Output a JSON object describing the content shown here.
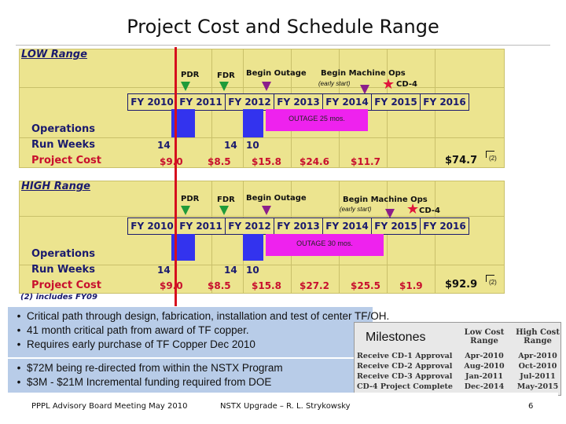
{
  "title": "Project Cost and Schedule Range",
  "fiscal_years": [
    "FY 2010",
    "FY 2011",
    "FY 2012",
    "FY 2013",
    "FY 2014",
    "FY 2015",
    "FY 2016"
  ],
  "row_labels": {
    "operations": "Operations",
    "run_weeks": "Run Weeks",
    "project_cost": "Project Cost"
  },
  "milestones": {
    "pdr": "PDR",
    "fdr": "FDR",
    "begin_outage": "Begin Outage",
    "begin_machine_ops": "Begin Machine Ops",
    "early_start": "(early start)",
    "cd4": "CD-4"
  },
  "low": {
    "label": "LOW Range",
    "outage": "OUTAGE 25 mos.",
    "run_weeks": [
      "14",
      "14",
      "10"
    ],
    "costs": [
      "$9.0",
      "$8.5",
      "$15.8",
      "$24.6",
      "$11.7"
    ],
    "total": "$74.7",
    "note": "(2)"
  },
  "high": {
    "label": "HIGH Range",
    "outage": "OUTAGE 30 mos.",
    "run_weeks": [
      "14",
      "14",
      "10"
    ],
    "costs": [
      "$9.0",
      "$8.5",
      "$15.8",
      "$27.2",
      "$25.5",
      "$1.9"
    ],
    "total": "$92.9",
    "note": "(2)"
  },
  "footnote": "(2) includes FY09",
  "bullets_top": [
    "Critical path through design, fabrication, installation and test of center TF/OH.",
    "41 month critical path from award of TF copper.",
    "Requires early purchase of TF Copper Dec 2010"
  ],
  "bullets_bottom": [
    "$72M being re-directed from within the NSTX Program",
    "$3M - $21M Incremental funding required from DOE"
  ],
  "milestone_table": {
    "title": "Milestones",
    "headers": [
      "",
      "Low Cost Range",
      "High Cost Range"
    ],
    "rows": [
      [
        "Receive CD-1 Approval",
        "Apr-2010",
        "Apr-2010"
      ],
      [
        "Receive CD-2 Approval",
        "Aug-2010",
        "Oct-2010"
      ],
      [
        "Receive CD-3 Approval",
        "Jan-2011",
        "Jul-2011"
      ],
      [
        "CD-4 Project Complete",
        "Dec-2014",
        "May-2015"
      ]
    ]
  },
  "footer": {
    "left": "PPPL Advisory Board Meeting May 2010",
    "center": "NSTX Upgrade – R. L. Strykowsky",
    "page": "6"
  }
}
